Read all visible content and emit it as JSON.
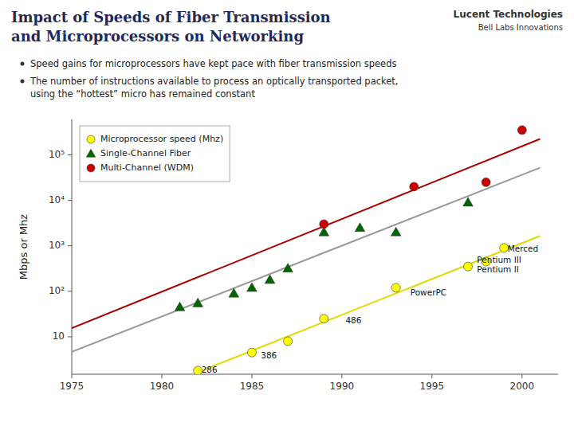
{
  "chart_data": {
    "type": "scatter",
    "title": [
      "Impact of Speeds of Fiber Transmission",
      "and Microprocessors on Networking"
    ],
    "bullets": [
      [
        "Speed gains for microprocessors have kept pace with fiber transmission speeds"
      ],
      [
        "The number of instructions available to process an optically transported packet,",
        "using the “hottest” micro has remained constant"
      ]
    ],
    "brand": [
      "Lucent Technologies",
      "Bell Labs Innovations"
    ],
    "ylabel": "Mbps or Mhz",
    "log": "y",
    "xlim": [
      1975,
      2002
    ],
    "ylim": [
      1.5,
      600000
    ],
    "xticks": [
      1975,
      1980,
      1985,
      1990,
      1995,
      2000
    ],
    "yticks": [
      10,
      {
        "value": 100,
        "label": "10²"
      },
      {
        "value": 1000,
        "label": "10³"
      },
      {
        "value": 10000,
        "label": "10⁴"
      },
      {
        "value": 100000,
        "label": "10⁵"
      }
    ],
    "grid": false,
    "legend": "upper left",
    "series": [
      {
        "type": "line",
        "color": "#999999",
        "x": [
          1975,
          2001
        ],
        "values": [
          4.657,
          51990
        ]
      },
      {
        "type": "line",
        "color": "#AA0000",
        "x": [
          1975,
          2001
        ],
        "values": [
          15.49,
          223910
        ]
      },
      {
        "type": "line",
        "color": "#DDDD00",
        "x": [
          1982,
          2001
        ],
        "values": [
          1.666,
          1649.1
        ]
      },
      {
        "name": "Microprocessor speed (Mhz)",
        "type": "scatter",
        "marker": "circle",
        "color": "#FFFF00",
        "x": [
          1982,
          1985,
          1987,
          1989,
          1993,
          1997,
          1998,
          1999
        ],
        "values": [
          1.8,
          4.5,
          8,
          25,
          120,
          350,
          450,
          900
        ]
      },
      {
        "name": "Single-Channel Fiber",
        "type": "scatter",
        "marker": "triangle",
        "color": "#006600",
        "x": [
          1981,
          1982,
          1984,
          1985,
          1986,
          1987,
          1989,
          1991,
          1993,
          1997
        ],
        "values": [
          45,
          55,
          90,
          120,
          180,
          320,
          2000,
          2500,
          2000,
          9000
        ]
      },
      {
        "name": "Multi-Channel (WDM)",
        "type": "scatter",
        "marker": "circle",
        "color": "#CC0000",
        "x": [
          1989,
          1994,
          1998,
          2000
        ],
        "values": [
          3000,
          20000,
          25000,
          350000
        ]
      }
    ],
    "annotations": [
      {
        "text": "286",
        "x": 1982.2,
        "y": 1.8
      },
      {
        "text": "386",
        "x": 1985.5,
        "y": 3.8
      },
      {
        "text": "486",
        "x": 1990.2,
        "y": 22
      },
      {
        "text": "PowerPC",
        "x": 1993.8,
        "y": 90
      },
      {
        "text": "Pentium II",
        "x": 1997.5,
        "y": 330
      },
      {
        "text": "Pentium III",
        "x": 1997.5,
        "y": 480
      },
      {
        "text": "Merced",
        "x": 1999.2,
        "y": 850
      }
    ]
  }
}
